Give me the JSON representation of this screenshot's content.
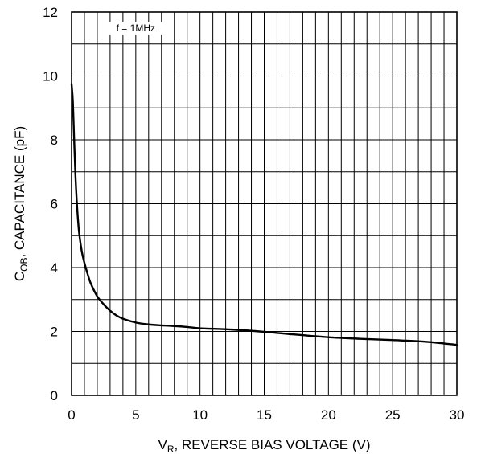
{
  "chart_data": {
    "type": "line",
    "xlabel": {
      "main": "V",
      "sub": "R",
      "rest": ", REVERSE BIAS VOLTAGE (V)"
    },
    "ylabel": {
      "main": "C",
      "sub": "OB",
      "rest": ", CAPACITANCE (pF)"
    },
    "annotation": "f = 1MHz",
    "xlim": [
      0,
      30
    ],
    "ylim": [
      0,
      12
    ],
    "xticks": [
      0,
      5,
      10,
      15,
      20,
      25,
      30
    ],
    "yticks": [
      0,
      2,
      4,
      6,
      8,
      10,
      12
    ],
    "grid": true,
    "series": [
      {
        "x": [
          0,
          0.1,
          0.2,
          0.3,
          0.4,
          0.5,
          0.6,
          0.8,
          1.0,
          1.25,
          1.5,
          2.0,
          2.5,
          3.0,
          3.5,
          4.0,
          5.0,
          6.0,
          7.0,
          8.0,
          9.0,
          10.0,
          12.5,
          15.0,
          17.5,
          20.0,
          22.5,
          25.0,
          27.5,
          30.0
        ],
        "y": [
          9.75,
          9.2,
          8.0,
          6.9,
          6.1,
          5.5,
          5.05,
          4.5,
          4.15,
          3.8,
          3.5,
          3.1,
          2.85,
          2.65,
          2.5,
          2.4,
          2.28,
          2.22,
          2.19,
          2.17,
          2.14,
          2.1,
          2.06,
          1.99,
          1.9,
          1.82,
          1.77,
          1.73,
          1.68,
          1.58
        ]
      }
    ]
  }
}
